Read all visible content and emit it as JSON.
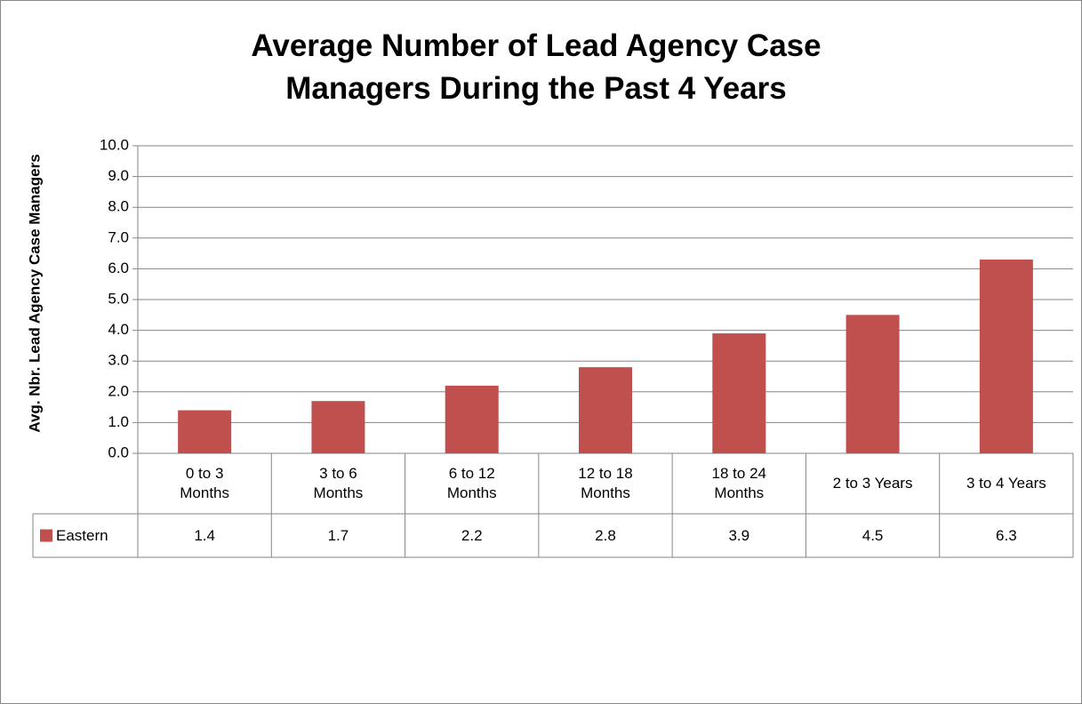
{
  "chart_data": {
    "type": "bar",
    "title": "Average Number of Lead Agency Case Managers During the Past 4 Years",
    "y_axis_label": "Avg. Nbr. Lead Agency Case Managers",
    "categories": [
      "0 to 3 Months",
      "3 to 6 Months",
      "6 to 12 Months",
      "12 to 18 Months",
      "18 to 24 Months",
      "2  to 3 Years",
      "3 to 4 Years"
    ],
    "series": [
      {
        "name": "Eastern",
        "color": "#c0504d",
        "values": [
          1.4,
          1.7,
          2.2,
          2.8,
          3.9,
          4.5,
          6.3
        ]
      }
    ],
    "ylim": [
      0,
      10
    ],
    "yticks": [
      {
        "value": 0,
        "label": "0.0"
      },
      {
        "value": 1,
        "label": "1.0"
      },
      {
        "value": 2,
        "label": "2.0"
      },
      {
        "value": 3,
        "label": "3.0"
      },
      {
        "value": 4,
        "label": "4.0"
      },
      {
        "value": 5,
        "label": "5.0"
      },
      {
        "value": 6,
        "label": "6.0"
      },
      {
        "value": 7,
        "label": "7.0"
      },
      {
        "value": 8,
        "label": "8.0"
      },
      {
        "value": 9,
        "label": "9.0"
      },
      {
        "value": 10,
        "label": "10.0"
      }
    ],
    "grid": true,
    "data_table": true
  }
}
